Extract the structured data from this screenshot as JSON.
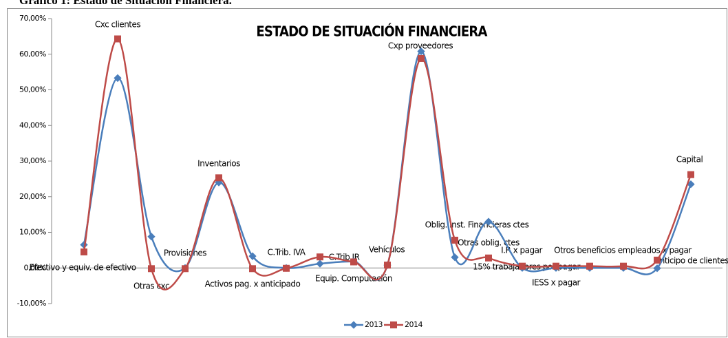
{
  "caption": "Gráfico 1: Estado de Situación Financiera.",
  "chart_data": {
    "type": "line",
    "title": "ESTADO DE SITUACIÓN FINANCIERA",
    "categories": [
      "Efectivo y equiv. de efectivo",
      "Cxc clientes",
      "Otras cxc",
      "Provisiones",
      "Inventarios",
      "Activos pag. x anticipado",
      "C.Trib. IVA",
      "Equip. Computación",
      "C.Trib IR",
      "Vehículos",
      "Cxp proveedores",
      "Oblig. Inst. Financieras ctes",
      "Otras oblig. ctes",
      "I.R x pagar",
      "15% trabajadores por pagar",
      "IESS x pagar",
      "Otros beneficios empleados x pagar",
      "Anticipo de clientes",
      "Capital"
    ],
    "series": [
      {
        "name": "2013",
        "color": "#4a7ebb",
        "values": [
          6.5,
          53.3,
          8.8,
          0,
          24,
          3.3,
          0,
          1.2,
          1.8,
          0.8,
          60.8,
          3,
          13,
          0,
          0,
          0,
          0,
          -0.1,
          23.5
        ]
      },
      {
        "name": "2014",
        "color": "#be4b48",
        "values": [
          4.5,
          64.3,
          -0.2,
          -0.2,
          25.3,
          -0.2,
          -0.1,
          3.1,
          1.7,
          0.8,
          58.8,
          7.8,
          2.8,
          0.5,
          0.5,
          0.5,
          0.5,
          2.2,
          26.2
        ]
      }
    ],
    "ylim": [
      -10,
      70
    ],
    "yticks": [
      {
        "value": -10,
        "label": "-10,00%"
      },
      {
        "value": 0,
        "label": "0,00%"
      },
      {
        "value": 10,
        "label": "10,00%"
      },
      {
        "value": 20,
        "label": "20,00%"
      },
      {
        "value": 30,
        "label": "30,00%"
      },
      {
        "value": 40,
        "label": "40,00%"
      },
      {
        "value": 50,
        "label": "50,00%"
      },
      {
        "value": 60,
        "label": "60,00%"
      },
      {
        "value": 70,
        "label": "70,00%"
      }
    ],
    "legend": "bottom"
  }
}
